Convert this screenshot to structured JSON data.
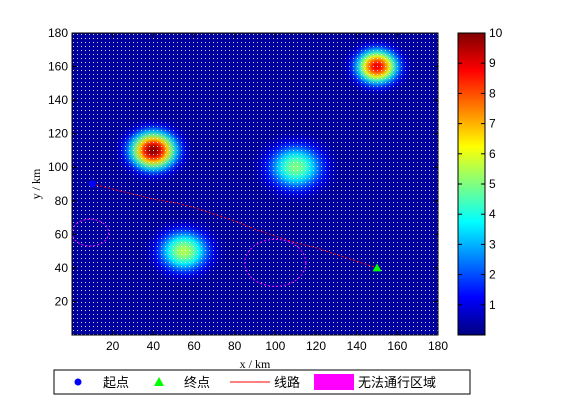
{
  "chart_data": {
    "type": "heatmap",
    "x_axis": {
      "label": "x / km",
      "range": [
        0,
        180
      ],
      "ticks": [
        20,
        40,
        60,
        80,
        100,
        120,
        140,
        160,
        180
      ]
    },
    "y_axis": {
      "label": "y / km",
      "range": [
        0,
        180
      ],
      "ticks": [
        20,
        40,
        60,
        80,
        100,
        120,
        140,
        160,
        180
      ]
    },
    "colorbar": {
      "range": [
        0,
        10
      ],
      "ticks": [
        1,
        2,
        3,
        4,
        5,
        6,
        7,
        8,
        9,
        10
      ],
      "colormap": "jet"
    },
    "peaks": [
      {
        "x": 40,
        "y": 110,
        "peak": 10,
        "spread": 10
      },
      {
        "x": 150,
        "y": 160,
        "peak": 9,
        "spread": 9
      },
      {
        "x": 110,
        "y": 100,
        "peak": 5,
        "spread": 12
      },
      {
        "x": 55,
        "y": 50,
        "peak": 5.5,
        "spread": 11
      }
    ],
    "start_point": {
      "x": 10,
      "y": 90,
      "color": "#0000ff"
    },
    "end_point": {
      "x": 150,
      "y": 40,
      "color": "#00ff00"
    },
    "route": {
      "color": "#ff0000",
      "x": [
        10,
        20,
        30,
        40,
        50,
        60,
        70,
        80,
        90,
        100,
        110,
        120,
        130,
        140,
        150
      ],
      "y": [
        90,
        87,
        84,
        81,
        79,
        76,
        72,
        68,
        63,
        59,
        55,
        52,
        48,
        44,
        40
      ]
    },
    "no_pass_zones": [
      {
        "cx": 9,
        "cy": 61,
        "rx": 9,
        "ry": 8
      },
      {
        "cx": 100,
        "cy": 43,
        "rx": 15,
        "ry": 14
      }
    ],
    "zone_color": "#ff00ff",
    "legend": {
      "placement": "bottom",
      "entries": [
        {
          "label": "起点",
          "marker": "dot",
          "color": "#0000ff"
        },
        {
          "label": "终点",
          "marker": "triangle",
          "color": "#00ff00"
        },
        {
          "label": "线路",
          "marker": "line",
          "color": "#ff0000"
        },
        {
          "label": "无法通行区域",
          "marker": "patch",
          "color": "#ff00ff"
        }
      ]
    }
  }
}
